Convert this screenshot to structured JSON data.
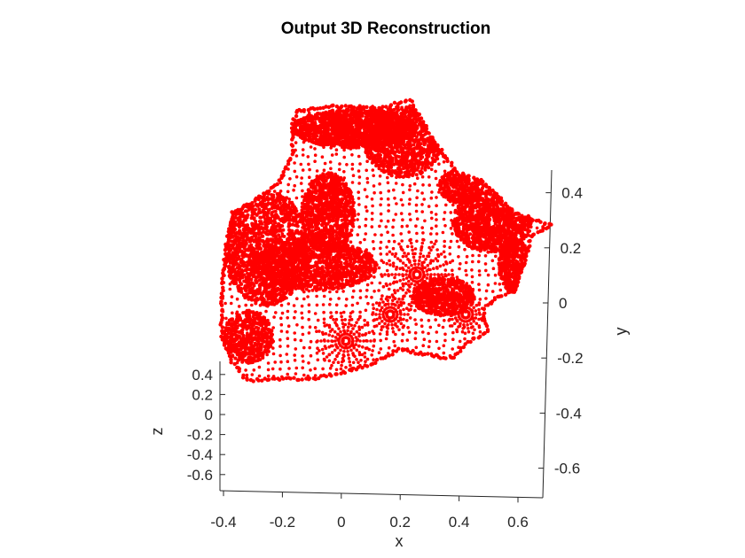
{
  "chart_data": {
    "type": "scatter",
    "title": "Output 3D Reconstruction",
    "xlabel": "x",
    "ylabel": "y",
    "zlabel": "z",
    "marker_color": "#ff0000",
    "x_ticks": [
      "-0.4",
      "-0.2",
      "0",
      "0.2",
      "0.4",
      "0.6"
    ],
    "y_ticks": [
      "0.4",
      "0.2",
      "0",
      "-0.2",
      "-0.4",
      "-0.6"
    ],
    "z_ticks": [
      "0.4",
      "0.2",
      "0",
      "-0.2",
      "-0.4",
      "-0.6"
    ],
    "xlim": [
      -0.42,
      0.7
    ],
    "ylim": [
      -0.7,
      0.47
    ],
    "grid": false,
    "view": "3D, looking nearly down the z-axis",
    "point_cloud": "dense red dotted 3D face/head surface reconstruction"
  }
}
